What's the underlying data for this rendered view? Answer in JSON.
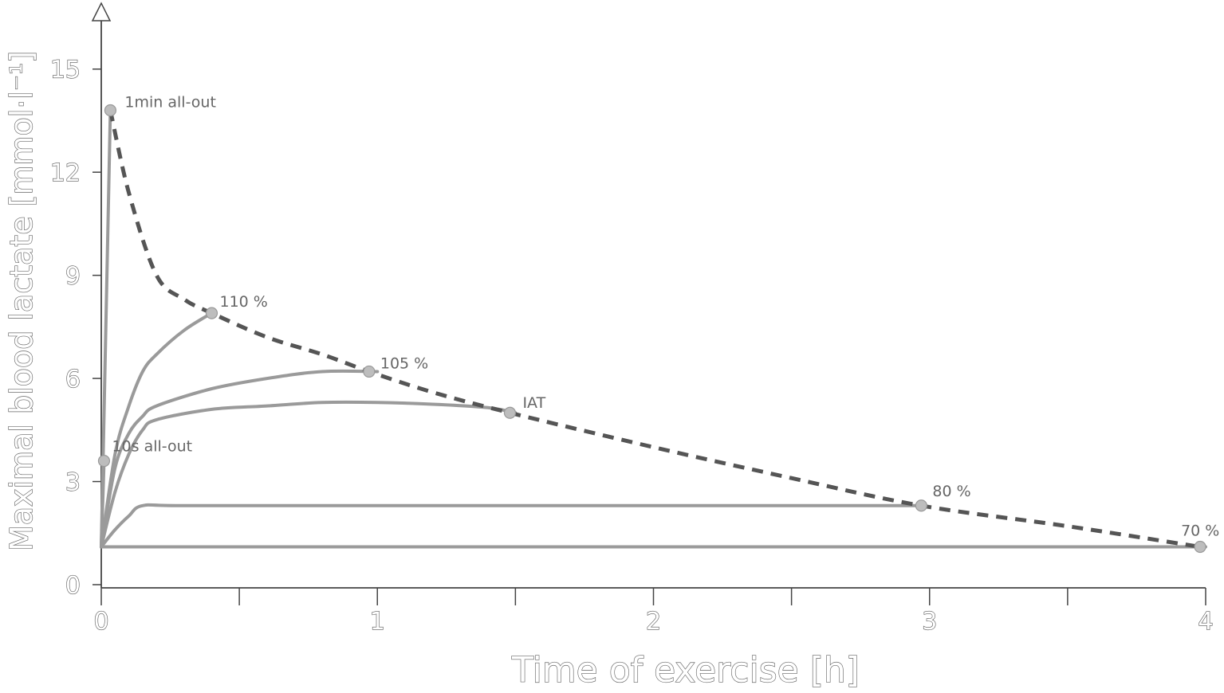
{
  "chart_data": {
    "type": "line",
    "xlabel": "Time of exercise [h]",
    "ylabel": "Maximal blood lactate [mmol·l⁻¹]",
    "xlim": [
      0,
      4
    ],
    "ylim": [
      0,
      16.5
    ],
    "x_ticks": [
      0,
      1,
      2,
      3,
      4
    ],
    "x_minor_ticks": [
      0.5,
      1.5,
      2.5,
      3.5
    ],
    "y_ticks": [
      0,
      3,
      6,
      9,
      12,
      15
    ],
    "grid": false,
    "series": [
      {
        "name": "1min all-out",
        "x": [
          0,
          0.033
        ],
        "y": [
          1.1,
          13.8
        ],
        "end": {
          "x": 0.033,
          "y": 13.8
        }
      },
      {
        "name": "10s all-out",
        "x": [
          0,
          0.01
        ],
        "y": [
          1.1,
          3.6
        ],
        "end": {
          "x": 0.01,
          "y": 3.6
        }
      },
      {
        "name": "110 %",
        "x": [
          0,
          0.05,
          0.1,
          0.15,
          0.2,
          0.3,
          0.4
        ],
        "y": [
          1.1,
          3.8,
          5.2,
          6.2,
          6.7,
          7.4,
          7.9
        ],
        "end": {
          "x": 0.4,
          "y": 7.9
        }
      },
      {
        "name": "105 %",
        "x": [
          0,
          0.05,
          0.1,
          0.15,
          0.2,
          0.4,
          0.6,
          0.8,
          1.0
        ],
        "y": [
          1.1,
          3.4,
          4.4,
          4.9,
          5.2,
          5.7,
          6.0,
          6.2,
          6.2
        ],
        "end": {
          "x": 0.97,
          "y": 6.2
        }
      },
      {
        "name": "IAT",
        "x": [
          0,
          0.05,
          0.1,
          0.15,
          0.2,
          0.4,
          0.6,
          0.8,
          1.0,
          1.2,
          1.4,
          1.5
        ],
        "y": [
          1.1,
          2.7,
          3.8,
          4.5,
          4.8,
          5.1,
          5.2,
          5.3,
          5.3,
          5.25,
          5.15,
          5.0
        ],
        "end": {
          "x": 1.48,
          "y": 5.0
        }
      },
      {
        "name": "80 %",
        "x": [
          0,
          0.05,
          0.1,
          0.15,
          0.3,
          1.0,
          2.0,
          2.97
        ],
        "y": [
          1.1,
          1.6,
          2.0,
          2.3,
          2.3,
          2.3,
          2.3,
          2.3
        ],
        "end": {
          "x": 2.97,
          "y": 2.3
        }
      },
      {
        "name": "70 %",
        "x": [
          0,
          1,
          2,
          3,
          4
        ],
        "y": [
          1.1,
          1.1,
          1.1,
          1.1,
          1.1
        ],
        "end": {
          "x": 3.98,
          "y": 1.1
        }
      }
    ],
    "envelope": {
      "style": "dashed",
      "x": [
        0.033,
        0.1,
        0.2,
        0.3,
        0.4,
        0.6,
        0.8,
        0.97,
        1.2,
        1.48,
        2.0,
        2.5,
        2.97,
        3.5,
        3.98
      ],
      "y": [
        13.8,
        11.4,
        9.0,
        8.3,
        7.9,
        7.2,
        6.7,
        6.2,
        5.6,
        5.0,
        4.0,
        3.1,
        2.3,
        1.7,
        1.1
      ]
    },
    "colors": {
      "series": "#9a9a9a",
      "envelope": "#555555",
      "points": "#bdbdbd",
      "axis": "#444444"
    }
  }
}
